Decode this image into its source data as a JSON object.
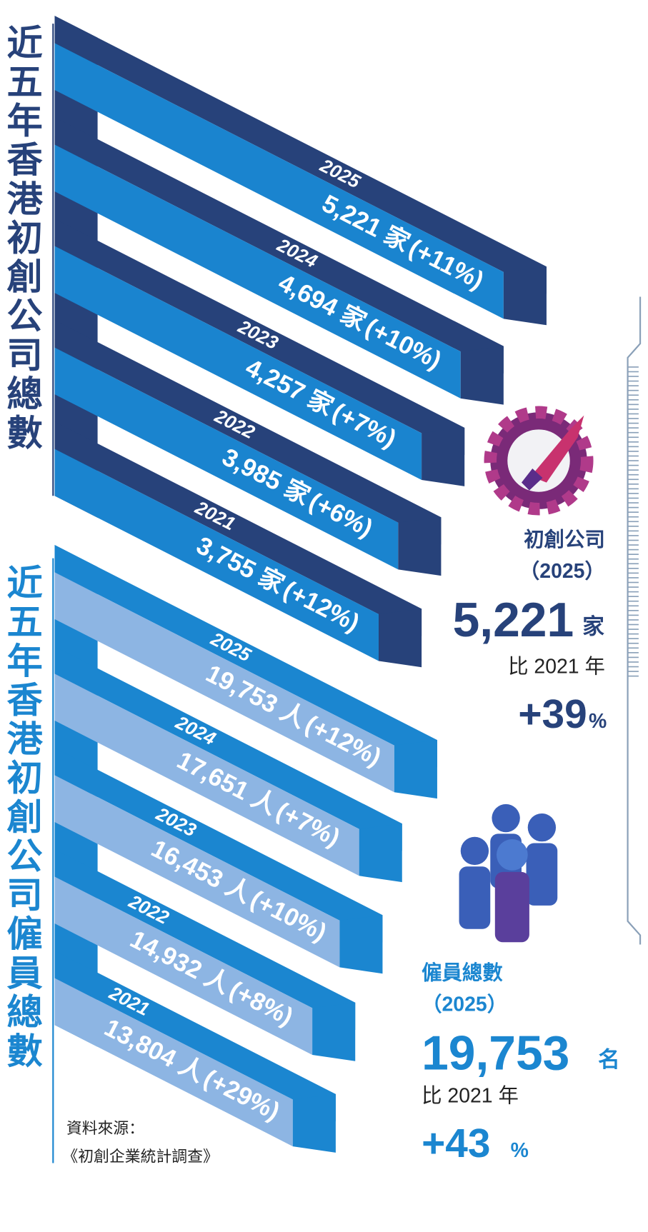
{
  "sections": [
    {
      "title": "近五年香港初創公司總數",
      "rows": [
        {
          "year": "2025",
          "count": "5,221 家",
          "change": "(+11%)"
        },
        {
          "year": "2024",
          "count": "4,694 家",
          "change": "(+10%)"
        },
        {
          "year": "2023",
          "count": "4,257 家",
          "change": "(+7%)"
        },
        {
          "year": "2022",
          "count": "3,985 家",
          "change": "(+6%)"
        },
        {
          "year": "2021",
          "count": "3,755 家",
          "change": "(+12%)"
        }
      ]
    },
    {
      "title": "近五年香港初創公司僱員總數",
      "rows": [
        {
          "year": "2025",
          "count": "19,753 人",
          "change": "(+12%)"
        },
        {
          "year": "2024",
          "count": "17,651 人",
          "change": "(+7%)"
        },
        {
          "year": "2023",
          "count": "16,453 人",
          "change": "(+10%)"
        },
        {
          "year": "2022",
          "count": "14,932 人",
          "change": "(+8%)"
        },
        {
          "year": "2021",
          "count": "13,804 人",
          "change": "(+29%)"
        }
      ]
    }
  ],
  "summary": [
    {
      "label": "初創公司",
      "year": "（2025）",
      "value": "5,221",
      "unit": "家",
      "compare": "比 2021 年",
      "change": "+39",
      "change_unit": "%"
    },
    {
      "label": "僱員總數",
      "year": "（2025）",
      "value": "19,753",
      "unit": "名",
      "compare": "比 2021 年",
      "change": "+43",
      "change_unit": "%"
    }
  ],
  "source": [
    "資料來源：",
    "《初創企業統計調查》"
  ]
}
